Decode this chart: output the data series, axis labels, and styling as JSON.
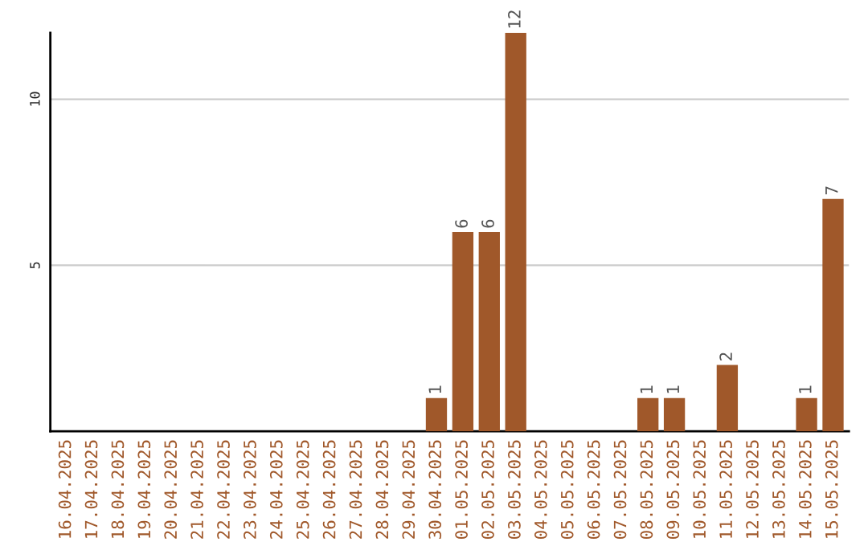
{
  "chart_data": {
    "type": "bar",
    "categories": [
      "16.04.2025",
      "17.04.2025",
      "18.04.2025",
      "19.04.2025",
      "20.04.2025",
      "21.04.2025",
      "22.04.2025",
      "23.04.2025",
      "24.04.2025",
      "25.04.2025",
      "26.04.2025",
      "27.04.2025",
      "28.04.2025",
      "29.04.2025",
      "30.04.2025",
      "01.05.2025",
      "02.05.2025",
      "03.05.2025",
      "04.05.2025",
      "05.05.2025",
      "06.05.2025",
      "07.05.2025",
      "08.05.2025",
      "09.05.2025",
      "10.05.2025",
      "11.05.2025",
      "12.05.2025",
      "13.05.2025",
      "14.05.2025",
      "15.05.2025"
    ],
    "values": [
      0,
      0,
      0,
      0,
      0,
      0,
      0,
      0,
      0,
      0,
      0,
      0,
      0,
      0,
      1,
      6,
      6,
      12,
      0,
      0,
      0,
      0,
      1,
      1,
      0,
      2,
      0,
      0,
      1,
      7
    ],
    "value_labels": [
      null,
      null,
      null,
      null,
      null,
      null,
      null,
      null,
      null,
      null,
      null,
      null,
      null,
      null,
      "1",
      "6",
      "6",
      "12",
      null,
      null,
      null,
      null,
      "1",
      "1",
      null,
      "2",
      null,
      null,
      "1",
      "7"
    ],
    "color": "#a0582a",
    "ylim": [
      0,
      12
    ],
    "yticks": [
      5,
      10
    ],
    "grid": "y"
  }
}
